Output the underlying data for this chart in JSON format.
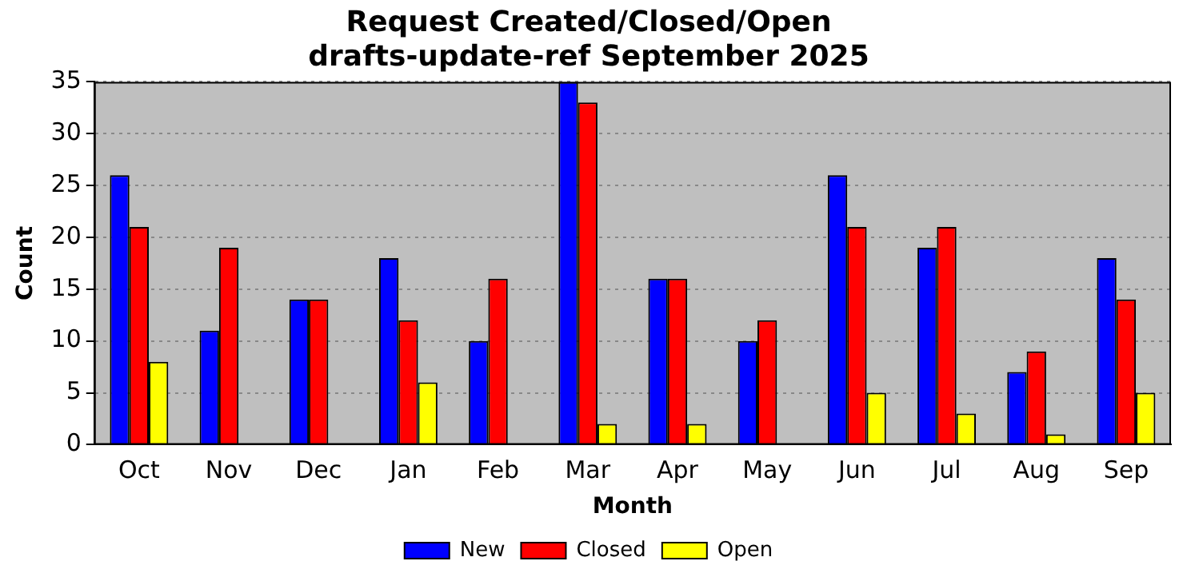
{
  "chart_data": {
    "type": "bar",
    "title": "Request Created/Closed/Open\ndrafts-update-ref September 2025",
    "xlabel": "Month",
    "ylabel": "Count",
    "categories": [
      "Oct",
      "Nov",
      "Dec",
      "Jan",
      "Feb",
      "Mar",
      "Apr",
      "May",
      "Jun",
      "Jul",
      "Aug",
      "Sep"
    ],
    "series": [
      {
        "name": "New",
        "color": "#0000ff",
        "values": [
          26,
          11,
          14,
          18,
          10,
          35,
          16,
          10,
          26,
          19,
          7,
          18
        ]
      },
      {
        "name": "Closed",
        "color": "#ff0000",
        "values": [
          21,
          19,
          14,
          12,
          16,
          33,
          16,
          12,
          21,
          21,
          9,
          14
        ]
      },
      {
        "name": "Open",
        "color": "#ffff00",
        "values": [
          8,
          0,
          0,
          6,
          0,
          2,
          2,
          0,
          5,
          3,
          1,
          5
        ]
      }
    ],
    "ylim": [
      0,
      35
    ],
    "yticks": [
      0,
      5,
      10,
      15,
      20,
      25,
      30,
      35
    ],
    "grid": "y",
    "legend": "bottom"
  }
}
